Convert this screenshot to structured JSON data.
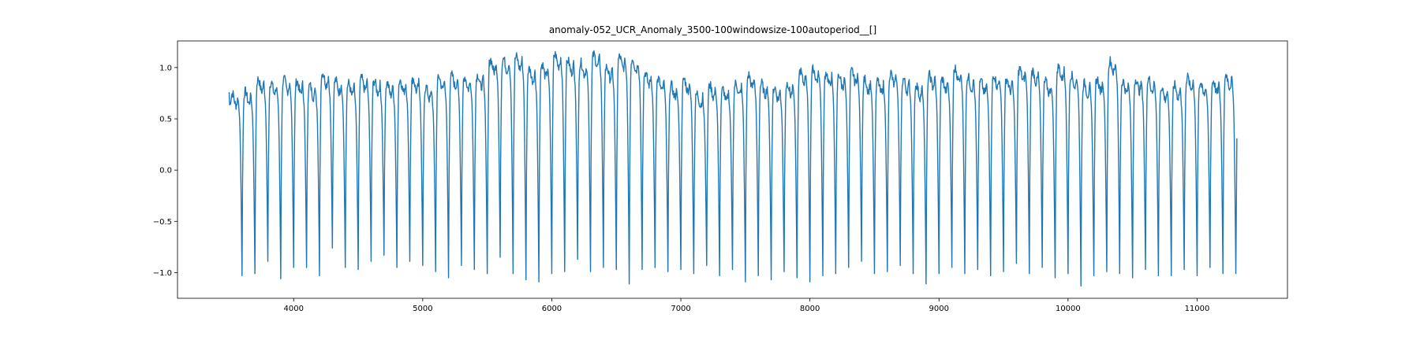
{
  "chart_data": {
    "type": "line",
    "title": "anomaly-052_UCR_Anomaly_3500-100windowsize-100autoperiod__[]",
    "xlabel": "",
    "ylabel": "",
    "xlim": [
      3100,
      11700
    ],
    "ylim": [
      -1.25,
      1.26
    ],
    "grid": false,
    "line_color": "#1f77b4",
    "x_ticks": [
      4000,
      5000,
      6000,
      7000,
      8000,
      9000,
      10000,
      11000
    ],
    "x_tick_labels": [
      "4000",
      "5000",
      "6000",
      "7000",
      "8000",
      "9000",
      "10000",
      "11000"
    ],
    "y_ticks": [
      1.0,
      0.5,
      0.0,
      -0.5,
      -1.0
    ],
    "y_tick_labels": [
      "1.0",
      "0.5",
      "0.0",
      "−0.5",
      "−1.0"
    ],
    "series": [
      {
        "x_start": 3500,
        "x_end": 11300,
        "cycle_count": 78,
        "start_value": 0.76,
        "end_value": 0.31,
        "plateau_values": [
          0.72,
          0.74,
          0.86,
          0.83,
          0.86,
          0.84,
          0.8,
          0.92,
          0.85,
          0.82,
          0.87,
          0.84,
          0.82,
          0.85,
          0.86,
          0.78,
          0.88,
          0.9,
          0.88,
          0.9,
          1.05,
          1.06,
          1.08,
          0.96,
          1.0,
          1.1,
          1.04,
          1.02,
          1.1,
          0.98,
          1.08,
          1.06,
          0.92,
          0.86,
          0.8,
          0.86,
          0.72,
          0.8,
          0.76,
          0.82,
          0.9,
          0.82,
          0.78,
          0.82,
          0.94,
          0.96,
          0.92,
          0.9,
          0.94,
          0.86,
          0.84,
          0.92,
          0.86,
          0.8,
          0.9,
          0.86,
          0.96,
          0.88,
          0.84,
          0.9,
          0.86,
          0.96,
          0.94,
          0.84,
          0.98,
          0.9,
          0.82,
          0.86,
          1.04,
          0.84,
          0.86,
          0.86,
          0.78,
          0.8,
          0.88,
          0.82,
          0.84,
          0.9
        ],
        "trough_values": [
          -1.03,
          -1.01,
          -0.89,
          -1.06,
          -0.95,
          -0.95,
          -1.03,
          -0.76,
          -0.95,
          -0.97,
          -0.89,
          -0.83,
          -0.95,
          -0.89,
          -0.93,
          -0.99,
          -1.05,
          -0.93,
          -0.97,
          -1.01,
          -0.85,
          -1.01,
          -1.07,
          -1.09,
          -1.01,
          -0.99,
          -0.87,
          -0.99,
          -0.95,
          -0.97,
          -1.11,
          -0.97,
          -0.95,
          -0.99,
          -0.97,
          -1.01,
          -0.93,
          -1.03,
          -0.97,
          -1.09,
          -1.03,
          -1.07,
          -0.99,
          -1.05,
          -1.09,
          -1.03,
          -1.01,
          -0.95,
          -0.89,
          -1.01,
          -0.99,
          -0.93,
          -1.01,
          -1.11,
          -1.01,
          -0.95,
          -1.01,
          -0.97,
          -1.03,
          -0.99,
          -0.91,
          -1.01,
          -0.95,
          -1.05,
          -1.01,
          -1.13,
          -1.03,
          -0.99,
          -1.01,
          -1.05,
          -0.97,
          -1.03,
          -1.03,
          -0.97,
          -1.03,
          -0.95,
          -1.01,
          -1.01
        ]
      }
    ]
  }
}
